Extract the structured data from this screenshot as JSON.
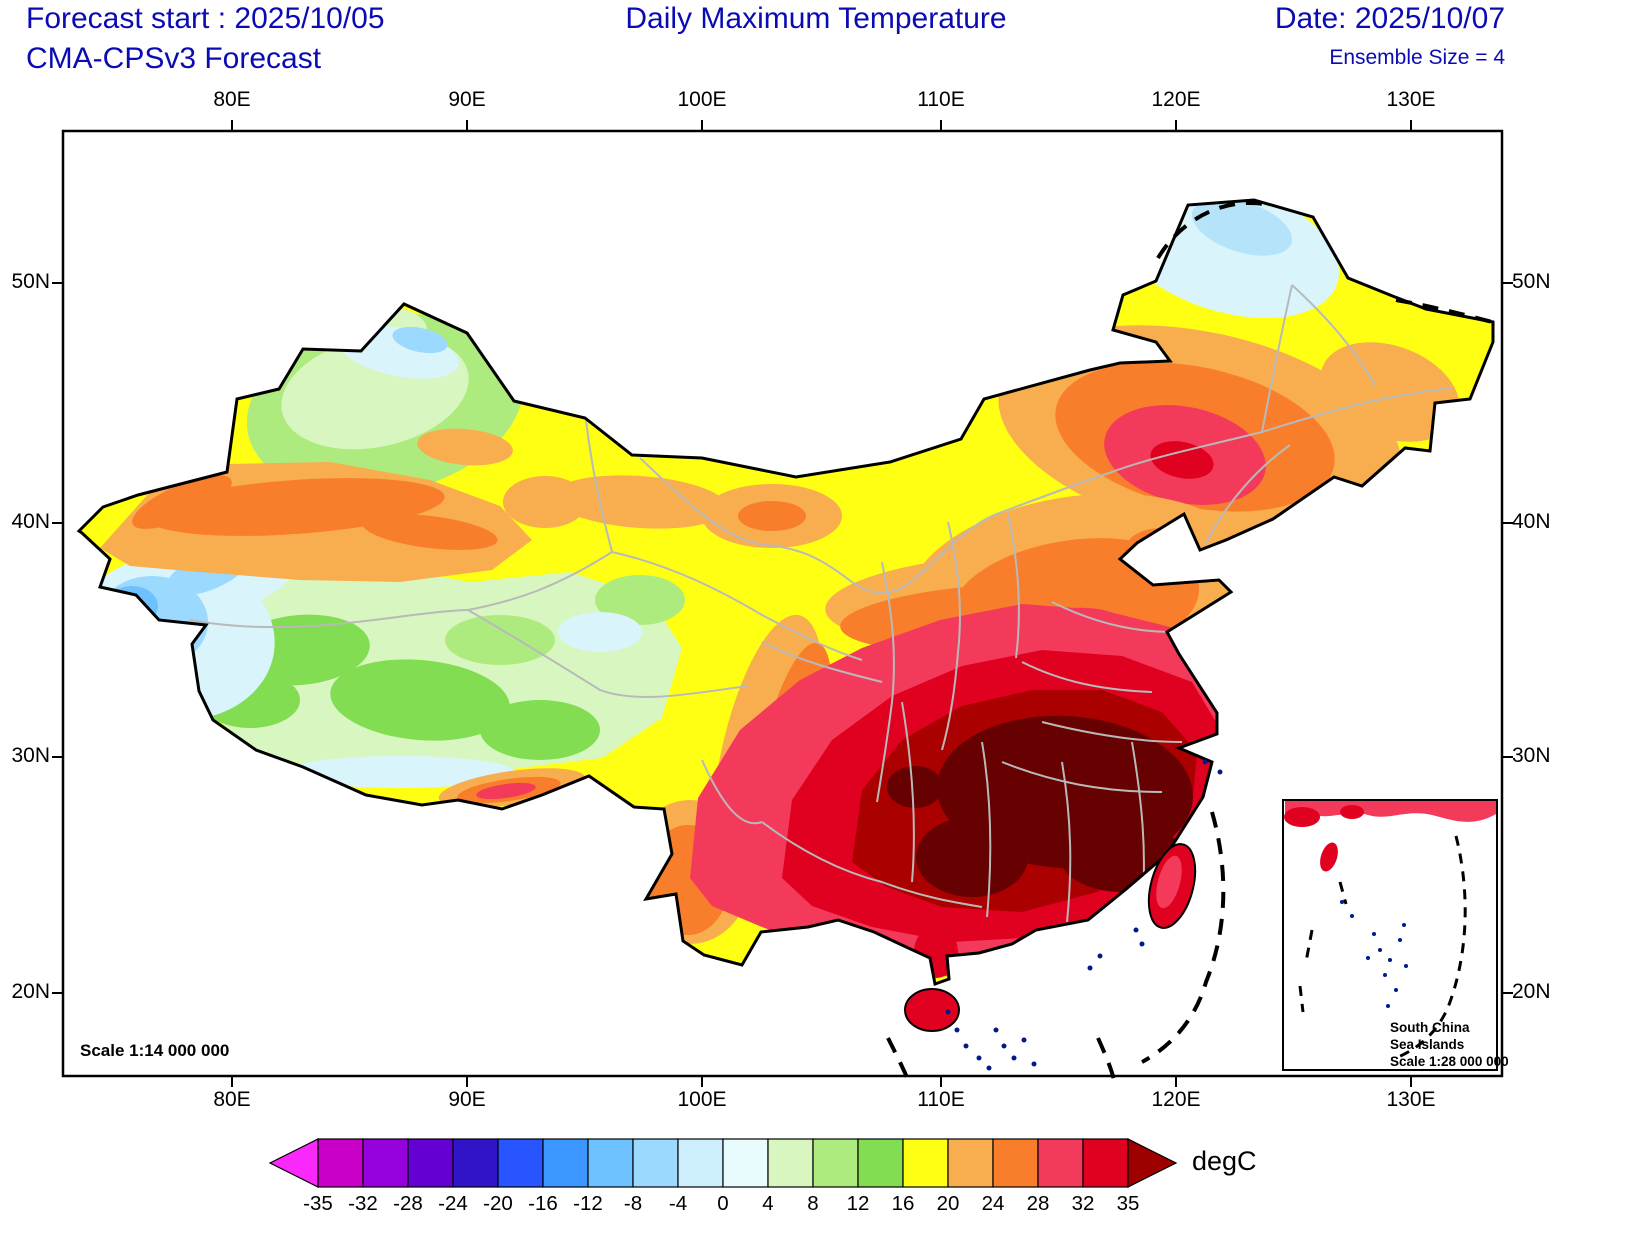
{
  "header": {
    "forecast_start": "Forecast start : 2025/10/05",
    "model": "CMA-CPSv3 Forecast",
    "title": "Daily Maximum Temperature",
    "date": "Date: 2025/10/07",
    "ensemble": "Ensemble Size = 4"
  },
  "map": {
    "lon_ticks": [
      "80E",
      "90E",
      "100E",
      "110E",
      "120E",
      "130E"
    ],
    "lat_ticks": [
      "50N",
      "40N",
      "30N",
      "20N"
    ],
    "scale_label": "Scale 1:14 000 000",
    "inset": {
      "line1": "South China",
      "line2": "Sea Islands",
      "line3": "Scale 1:28 000 000"
    }
  },
  "colorbar": {
    "unit": "degC",
    "tick_labels": [
      "-35",
      "-32",
      "-28",
      "-24",
      "-20",
      "-16",
      "-12",
      "-8",
      "-4",
      "0",
      "4",
      "8",
      "12",
      "16",
      "20",
      "24",
      "28",
      "32",
      "35"
    ],
    "colors": [
      "#c800c8",
      "#9600dc",
      "#6400d2",
      "#3214c8",
      "#2855ff",
      "#3c96ff",
      "#6ec1ff",
      "#9bd9ff",
      "#cdeefd",
      "#e8fbfd",
      "#d8f6c0",
      "#aeeb7e",
      "#82dd52",
      "#ffff14",
      "#f8ad4e",
      "#f87e2b",
      "#f43a5a",
      "#e00020"
    ],
    "left_arrow_color": "#fa28fa",
    "right_arrow_color": "#9e0000"
  },
  "colors": {
    "header_text": "#0b0bb4",
    "island_dots": "#001a8c",
    "hottest_core": "#670000"
  },
  "chart_data": {
    "type": "heatmap",
    "title": "Daily Maximum Temperature",
    "unit": "degC",
    "contour_levels": [
      -35,
      -32,
      -28,
      -24,
      -20,
      -16,
      -12,
      -8,
      -4,
      0,
      4,
      8,
      12,
      16,
      20,
      24,
      28,
      32,
      35
    ],
    "lon_extent": [
      80,
      130
    ],
    "lat_extent": [
      20,
      50
    ],
    "description": "Filled-contour forecast map of daily maximum temperature over China; coldest (pale cyan/blue, -4 to 4 degC) over western Tibet, Pamir and far-northeast tip; green 4-12 over Tibetan Plateau and Junggar; yellow 16-20 across the north; orange 20-28 over Tarim Basin, North China and Northeast; crimson/red 28-35 over Liaoning blob and all of Southeast China; darkest >35 core over Jiangnan/South China"
  }
}
